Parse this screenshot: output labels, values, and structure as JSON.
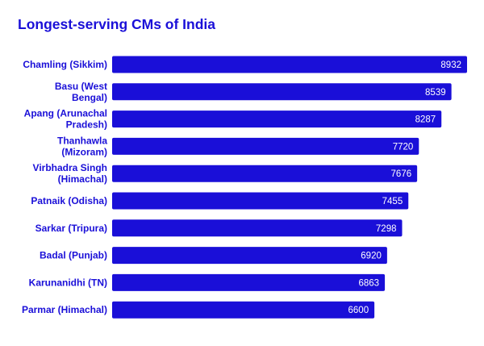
{
  "chart_data": {
    "type": "bar",
    "orientation": "horizontal",
    "title": "Longest-serving CMs of India",
    "categories": [
      [
        "Chamling (Sikkim)"
      ],
      [
        "Basu (West",
        "Bengal)"
      ],
      [
        "Apang (Arunachal",
        "Pradesh)"
      ],
      [
        "Thanhawla",
        "(Mizoram)"
      ],
      [
        "Virbhadra Singh",
        "(Himachal)"
      ],
      [
        "Patnaik (Odisha)"
      ],
      [
        "Sarkar (Tripura)"
      ],
      [
        "Badal (Punjab)"
      ],
      [
        "Karunanidhi (TN)"
      ],
      [
        "Parmar (Himachal)"
      ]
    ],
    "values": [
      8932,
      8539,
      8287,
      7720,
      7676,
      7455,
      7298,
      6920,
      6863,
      6600
    ],
    "value_labels": [
      "8932",
      "8539",
      "8287",
      "7720",
      "7676",
      "7455",
      "7298",
      "6920",
      "6863",
      "6600"
    ],
    "xlabel": "",
    "ylabel": "",
    "xlim": [
      0,
      8932
    ],
    "grid": false,
    "legend": "none",
    "bar_color": "#1a0fd8",
    "label_color": "#1a0fd8",
    "value_label_color": "#ffffff"
  }
}
